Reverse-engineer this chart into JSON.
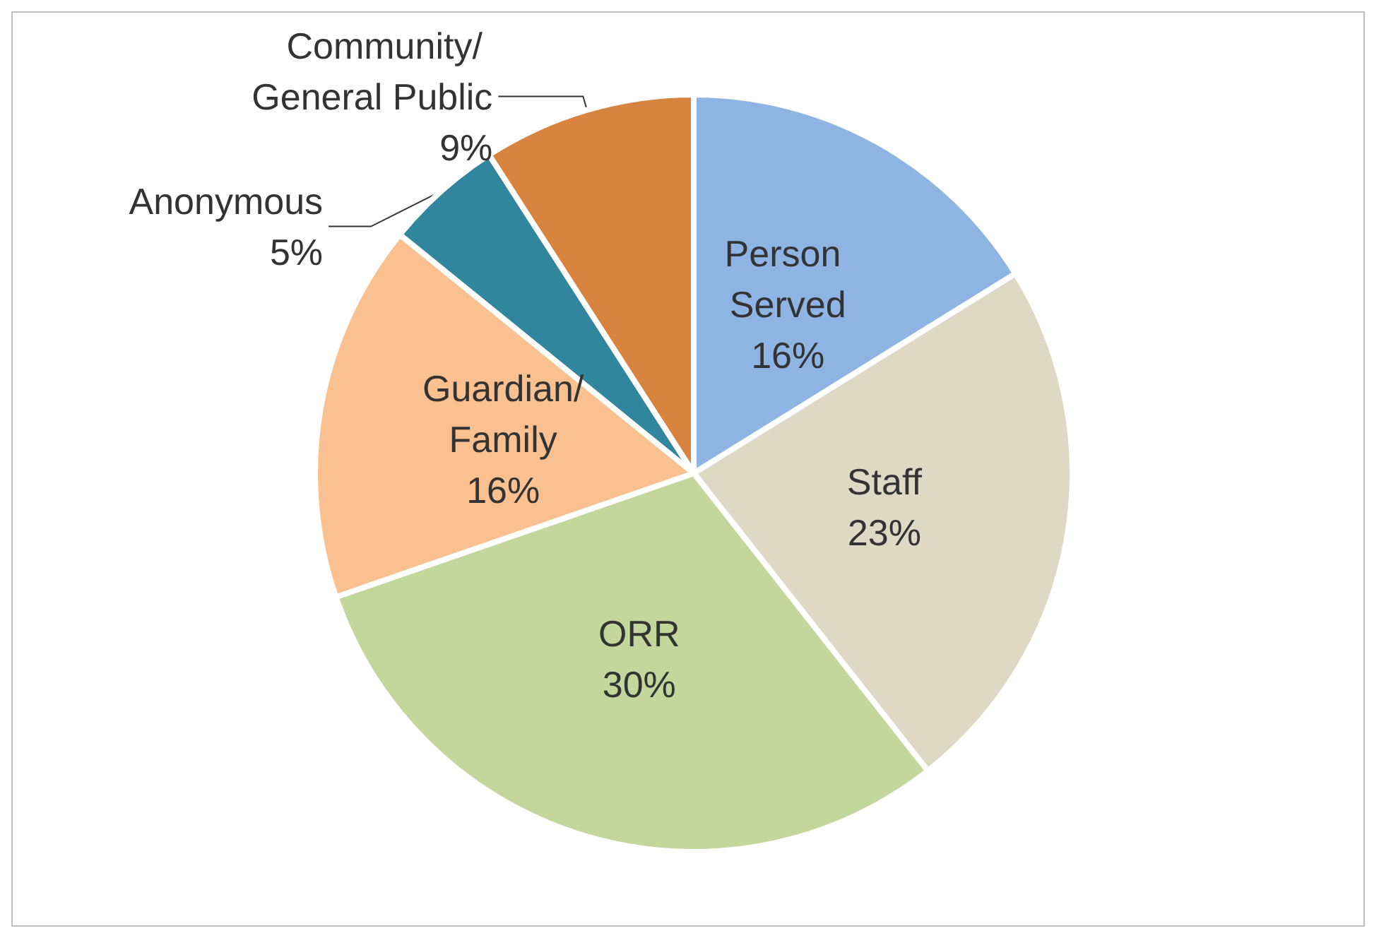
{
  "chart_data": {
    "type": "pie",
    "categories": [
      "Person Served",
      "Staff",
      "ORR",
      "Guardian/Family",
      "Anonymous",
      "Community/ General Public"
    ],
    "values": [
      16,
      23,
      30,
      16,
      5,
      9
    ],
    "value_labels": [
      "16%",
      "23%",
      "30%",
      "16%",
      "5%",
      "9%"
    ],
    "colors": [
      "#8eb4e3",
      "#ddd9c4",
      "#c3d69b",
      "#fac090",
      "#31859c",
      "#d9843e"
    ],
    "legend": false
  }
}
